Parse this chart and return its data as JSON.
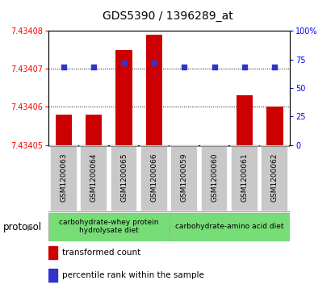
{
  "title": "GDS5390 / 1396289_at",
  "samples": [
    "GSM1200063",
    "GSM1200064",
    "GSM1200065",
    "GSM1200066",
    "GSM1200059",
    "GSM1200060",
    "GSM1200061",
    "GSM1200062"
  ],
  "red_values": [
    7.434058,
    7.434058,
    7.434075,
    7.434079,
    7.434048,
    7.434048,
    7.434063,
    7.43406
  ],
  "blue_values": [
    68,
    68,
    72,
    72,
    68,
    68,
    68,
    68
  ],
  "ymin": 7.43405,
  "ymax": 7.43408,
  "y2min": 0,
  "y2max": 100,
  "ytick_positions": [
    7.43405,
    7.43405,
    7.43406,
    7.43407,
    7.43408
  ],
  "ytick_labels": [
    "7.43405",
    "7.43405",
    "7.43406",
    "7.43407",
    "7.43408"
  ],
  "y2ticks": [
    0,
    25,
    50,
    75,
    100
  ],
  "y2tick_labels": [
    "0",
    "25",
    "50",
    "75",
    "100%"
  ],
  "bar_color": "#cc0000",
  "blue_color": "#3333cc",
  "tick_box_color": "#c8c8c8",
  "proto_color": "#77dd77",
  "proto_border_color": "#aaaaaa",
  "protocol_label": "protocol",
  "proto_group1_label": "carbohydrate-whey protein\nhydrolysate diet",
  "proto_group2_label": "carbohydrate-amino acid diet",
  "legend_red_label": "transformed count",
  "legend_blue_label": "percentile rank within the sample",
  "plot_bg": "#ffffff",
  "fig_bg": "#ffffff",
  "spine_color": "#888888"
}
